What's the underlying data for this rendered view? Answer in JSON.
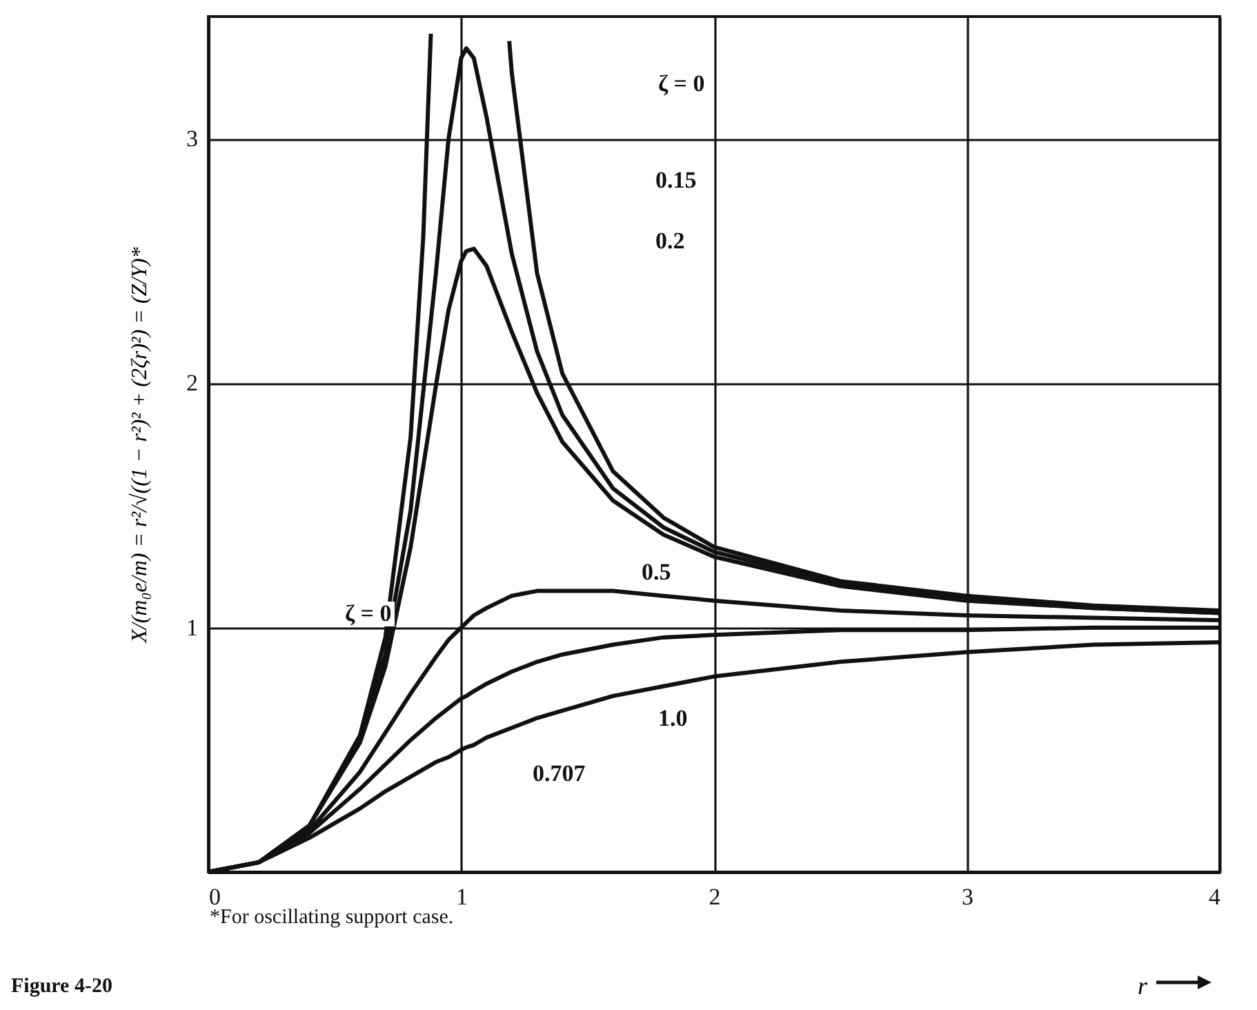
{
  "chart_data": {
    "type": "line",
    "xlabel": "r",
    "ylabel": "X/(m₀e/m) = r²/√((1 − r²)² + (2ζr)²) = (Z/Y)*",
    "x": [
      0,
      0.2,
      0.4,
      0.6,
      0.7,
      0.8,
      0.9,
      0.95,
      1.0,
      1.02,
      1.05,
      1.1,
      1.2,
      1.3,
      1.4,
      1.6,
      1.8,
      2,
      2.5,
      3,
      3.5,
      4
    ],
    "series": [
      {
        "color": "#111111",
        "x": [
          0,
          0.2,
          0.4,
          0.6,
          0.7,
          0.8,
          0.85,
          0.88,
          1.0,
          1.19,
          1.2,
          1.3,
          1.4,
          1.6,
          1.8,
          2,
          2.5,
          3,
          3.5,
          4
        ],
        "values": [
          0,
          0.04,
          0.19,
          0.56,
          0.96,
          1.78,
          2.6,
          3.43,
          null,
          3.4,
          3.27,
          2.45,
          2.04,
          1.64,
          1.45,
          1.33,
          1.19,
          1.13,
          1.09,
          1.07
        ]
      },
      {
        "color": "#111111",
        "values": [
          0,
          0.04,
          0.19,
          0.54,
          0.89,
          1.48,
          2.45,
          3.0,
          3.33,
          3.37,
          3.33,
          3.09,
          2.53,
          2.13,
          1.87,
          1.57,
          1.41,
          1.31,
          1.18,
          1.12,
          1.08,
          1.06
        ]
      },
      {
        "color": "#111111",
        "values": [
          0,
          0.04,
          0.19,
          0.53,
          0.84,
          1.33,
          1.99,
          2.3,
          2.5,
          2.54,
          2.55,
          2.48,
          2.21,
          1.96,
          1.76,
          1.52,
          1.38,
          1.29,
          1.17,
          1.11,
          1.08,
          1.06
        ]
      },
      {
        "color": "#111111",
        "values": [
          0,
          0.04,
          0.17,
          0.41,
          0.57,
          0.73,
          0.88,
          0.95,
          1.0,
          1.02,
          1.05,
          1.08,
          1.13,
          1.15,
          1.15,
          1.15,
          1.13,
          1.11,
          1.07,
          1.05,
          1.04,
          1.03
        ]
      },
      {
        "color": "#111111",
        "values": [
          0,
          0.04,
          0.16,
          0.34,
          0.44,
          0.54,
          0.63,
          0.67,
          0.71,
          0.72,
          0.74,
          0.77,
          0.82,
          0.86,
          0.89,
          0.93,
          0.96,
          0.97,
          0.99,
          0.99,
          1.0,
          1.0
        ]
      },
      {
        "color": "#111111",
        "values": [
          0,
          0.04,
          0.14,
          0.26,
          0.33,
          0.39,
          0.45,
          0.47,
          0.5,
          0.51,
          0.52,
          0.55,
          0.59,
          0.63,
          0.66,
          0.72,
          0.76,
          0.8,
          0.86,
          0.9,
          0.93,
          0.94
        ]
      }
    ],
    "xlim": [
      0,
      4
    ],
    "xticks": [
      0,
      1,
      2,
      3,
      4
    ],
    "ylim": [
      0,
      3.5
    ],
    "yticks": [
      1,
      2,
      3
    ],
    "grid": true,
    "marker": "none",
    "line_style": "solid",
    "annotations": [
      "ζ = 0",
      "0.15",
      "0.2",
      "ζ = 0",
      "0.5",
      "1.0",
      "0.707",
      "*For oscillating support case.",
      "Figure 4-20"
    ]
  }
}
